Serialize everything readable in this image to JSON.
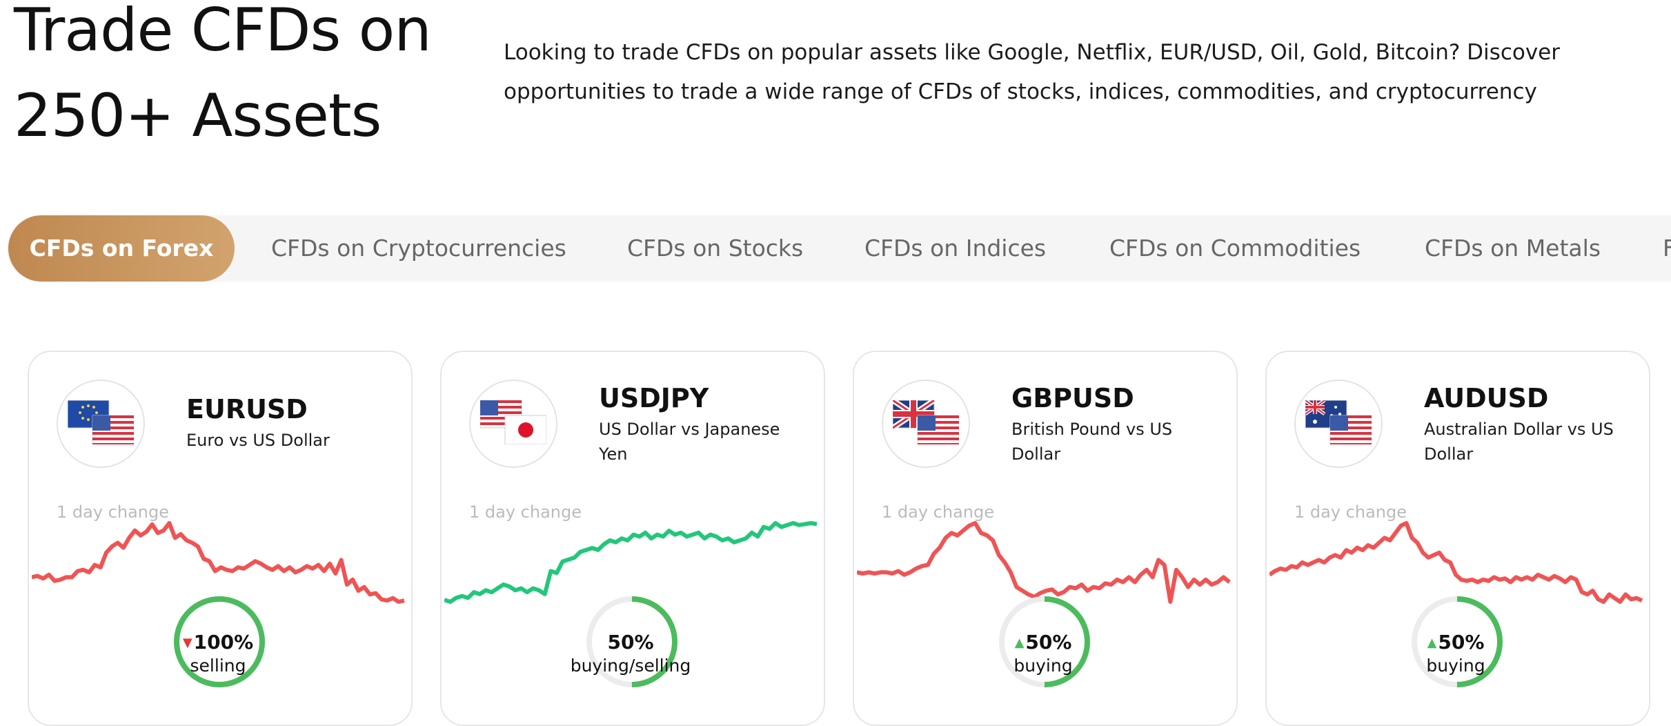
{
  "hero": {
    "title_line1": "Trade CFDs on",
    "title_line2": "250+ Assets",
    "description": "Looking to trade CFDs on popular assets like Google, Netflix, EUR/USD, Oil, Gold, Bitcoin? Discover opportunities to trade a wide range of CFDs of stocks, indices, commodities, and cryptocurrency"
  },
  "tabs": [
    {
      "label": "CFDs on Forex",
      "active": true
    },
    {
      "label": "CFDs on Cryptocurrencies",
      "active": false
    },
    {
      "label": "CFDs on Stocks",
      "active": false
    },
    {
      "label": "CFDs on Indices",
      "active": false
    },
    {
      "label": "CFDs on Commodities",
      "active": false
    },
    {
      "label": "CFDs on Metals",
      "active": false
    },
    {
      "label": "F",
      "active": false
    }
  ],
  "colors": {
    "accent": "#c9955f",
    "down": "#ef5454",
    "up": "#22c77a",
    "gauge": "#4cbb5e",
    "gauge_track": "#ececec"
  },
  "cards": [
    {
      "symbol": "EURUSD",
      "name": "Euro vs US Dollar",
      "flags": [
        "eu-flag-icon",
        "us-flag-icon"
      ],
      "change_label": "1 day change",
      "trend": "down",
      "chart_data": {
        "type": "line",
        "values": [
          30,
          31,
          29,
          32,
          27,
          28,
          30,
          30,
          35,
          36,
          34,
          40,
          38,
          50,
          55,
          58,
          54,
          62,
          68,
          64,
          67,
          73,
          66,
          68,
          74,
          62,
          65,
          60,
          58,
          55,
          45,
          43,
          35,
          38,
          36,
          35,
          38,
          37,
          40,
          43,
          41,
          38,
          36,
          39,
          35,
          38,
          34,
          36,
          39,
          37,
          40,
          35,
          41,
          33,
          44,
          24,
          28,
          19,
          22,
          16,
          17,
          12,
          11,
          13,
          10,
          11
        ]
      },
      "gauge": {
        "percent": 100,
        "value": "100%",
        "direction": "down",
        "caption": "selling"
      }
    },
    {
      "symbol": "USDJPY",
      "name": "US Dollar vs Japanese Yen",
      "flags": [
        "us-flag-icon",
        "jp-flag-icon"
      ],
      "change_label": "1 day change",
      "trend": "up",
      "chart_data": {
        "type": "line",
        "values": [
          10,
          8,
          12,
          14,
          12,
          18,
          16,
          20,
          18,
          22,
          26,
          24,
          20,
          22,
          18,
          22,
          20,
          16,
          40,
          38,
          50,
          52,
          54,
          60,
          62,
          64,
          62,
          68,
          72,
          70,
          74,
          72,
          78,
          76,
          80,
          74,
          78,
          76,
          82,
          78,
          80,
          76,
          78,
          80,
          74,
          78,
          76,
          72,
          74,
          70,
          72,
          74,
          80,
          76,
          86,
          84,
          90,
          86,
          88,
          90,
          88,
          89,
          90,
          89
        ]
      },
      "gauge": {
        "percent": 50,
        "value": "50%",
        "direction": "",
        "caption": "buying/selling"
      }
    },
    {
      "symbol": "GBPUSD",
      "name": "British Pound vs US Dollar",
      "flags": [
        "uk-flag-icon",
        "us-flag-icon"
      ],
      "change_label": "1 day change",
      "trend": "down",
      "chart_data": {
        "type": "line",
        "values": [
          30,
          29,
          30,
          29,
          30,
          30,
          29,
          31,
          28,
          30,
          33,
          35,
          36,
          45,
          50,
          58,
          62,
          60,
          64,
          68,
          70,
          62,
          60,
          56,
          44,
          38,
          30,
          18,
          15,
          12,
          10,
          13,
          15,
          16,
          12,
          14,
          18,
          17,
          20,
          15,
          18,
          17,
          21,
          20,
          24,
          22,
          26,
          22,
          28,
          32,
          26,
          40,
          36,
          6,
          32,
          26,
          18,
          24,
          20,
          24,
          20,
          22,
          26,
          22
        ]
      },
      "gauge": {
        "percent": 50,
        "value": "50%",
        "direction": "up",
        "caption": "buying"
      }
    },
    {
      "symbol": "AUDUSD",
      "name": "Australian Dollar vs US Dollar",
      "flags": [
        "au-flag-icon",
        "us-flag-icon"
      ],
      "change_label": "1 day change",
      "trend": "down",
      "chart_data": {
        "type": "line",
        "values": [
          30,
          33,
          35,
          34,
          37,
          36,
          40,
          38,
          40,
          42,
          40,
          44,
          46,
          44,
          50,
          48,
          52,
          50,
          54,
          52,
          56,
          60,
          58,
          64,
          70,
          72,
          60,
          56,
          48,
          44,
          46,
          48,
          42,
          40,
          30,
          26,
          25,
          26,
          24,
          26,
          25,
          28,
          26,
          27,
          24,
          28,
          26,
          28,
          26,
          30,
          28,
          26,
          29,
          27,
          24,
          28,
          26,
          16,
          14,
          17,
          10,
          8,
          14,
          11,
          8,
          14,
          10,
          11,
          9
        ]
      },
      "gauge": {
        "percent": 50,
        "value": "50%",
        "direction": "up",
        "caption": "buying"
      }
    }
  ]
}
